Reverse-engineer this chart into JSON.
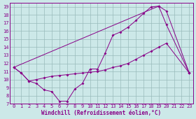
{
  "bg_color": "#cce8e8",
  "line_color": "#880088",
  "grid_color": "#99bbbb",
  "xlabel": "Windchill (Refroidissement éolien,°C)",
  "xlim": [
    -0.5,
    23.5
  ],
  "ylim": [
    7,
    19.5
  ],
  "xticks": [
    0,
    1,
    2,
    3,
    4,
    5,
    6,
    7,
    8,
    9,
    10,
    11,
    12,
    13,
    14,
    15,
    16,
    17,
    18,
    19,
    20,
    21,
    22,
    23
  ],
  "yticks": [
    7,
    8,
    9,
    10,
    11,
    12,
    13,
    14,
    15,
    16,
    17,
    18,
    19
  ],
  "line1_x": [
    0,
    1,
    2,
    3,
    4,
    5,
    6,
    7,
    8,
    9,
    10,
    11,
    12,
    13,
    14,
    15,
    16,
    17,
    18,
    19,
    20,
    23
  ],
  "line1_y": [
    11.5,
    10.8,
    9.8,
    9.5,
    8.7,
    8.5,
    7.3,
    7.3,
    8.8,
    9.5,
    11.3,
    11.3,
    13.3,
    15.5,
    15.9,
    16.5,
    17.3,
    18.2,
    19.0,
    19.1,
    18.5,
    10.8
  ],
  "line2_x": [
    0,
    1,
    2,
    3,
    4,
    5,
    6,
    7,
    8,
    9,
    10,
    11,
    12,
    13,
    14,
    15,
    16,
    17,
    18,
    19,
    20,
    23
  ],
  "line2_y": [
    11.5,
    10.8,
    9.8,
    10.0,
    10.2,
    10.4,
    10.5,
    10.6,
    10.7,
    10.8,
    10.9,
    11.0,
    11.2,
    11.5,
    11.7,
    12.0,
    12.5,
    13.0,
    13.5,
    14.0,
    14.5,
    10.8
  ],
  "line3_x": [
    0,
    19,
    20,
    23
  ],
  "line3_y": [
    11.5,
    19.1,
    16.8,
    10.8
  ]
}
